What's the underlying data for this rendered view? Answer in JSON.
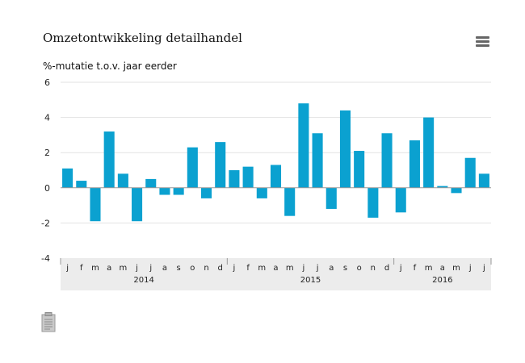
{
  "header": {
    "title": "Omzetontwikkeling detailhandel",
    "subtitle": "%-mutatie t.o.v. jaar eerder",
    "menu_icon": "hamburger-menu-icon"
  },
  "footer": {
    "icon": "document-icon"
  },
  "colors": {
    "bar": "#0ba1d0",
    "grid": "#e2e2e2",
    "zero_line": "#999999",
    "axis_band": "#ececec"
  },
  "chart_data": {
    "type": "bar",
    "ylabel": "%-mutatie t.o.v. jaar eerder",
    "ylim": [
      -4,
      6
    ],
    "yticks": [
      6,
      4,
      2,
      0,
      -2,
      -4
    ],
    "grid": true,
    "month_labels": [
      "j",
      "f",
      "m",
      "a",
      "m",
      "j",
      "j",
      "a",
      "s",
      "o",
      "n",
      "d",
      "j",
      "f",
      "m",
      "a",
      "m",
      "j",
      "j",
      "a",
      "s",
      "o",
      "n",
      "d",
      "j",
      "f",
      "m",
      "a",
      "m",
      "j",
      "j"
    ],
    "year_groups": [
      {
        "label": "2014",
        "months": 12
      },
      {
        "label": "2015",
        "months": 12
      },
      {
        "label": "2016",
        "months": 7
      }
    ],
    "categories": [
      "jan 2014",
      "feb 2014",
      "mrt 2014",
      "apr 2014",
      "mei 2014",
      "jun 2014",
      "jul 2014",
      "aug 2014",
      "sep 2014",
      "okt 2014",
      "nov 2014",
      "dec 2014",
      "jan 2015",
      "feb 2015",
      "mrt 2015",
      "apr 2015",
      "mei 2015",
      "jun 2015",
      "jul 2015",
      "aug 2015",
      "sep 2015",
      "okt 2015",
      "nov 2015",
      "dec 2015",
      "jan 2016",
      "feb 2016",
      "mrt 2016",
      "apr 2016",
      "mei 2016",
      "jun 2016",
      "jul 2016"
    ],
    "values": [
      1.1,
      0.4,
      -1.9,
      3.2,
      0.8,
      -1.9,
      0.5,
      -0.4,
      -0.4,
      2.3,
      -0.6,
      2.6,
      1.0,
      1.2,
      -0.6,
      1.3,
      -1.6,
      4.8,
      3.1,
      -1.2,
      4.4,
      2.1,
      -1.7,
      3.1,
      -1.4,
      2.7,
      4.0,
      0.1,
      -0.3,
      1.7,
      0.8
    ]
  }
}
